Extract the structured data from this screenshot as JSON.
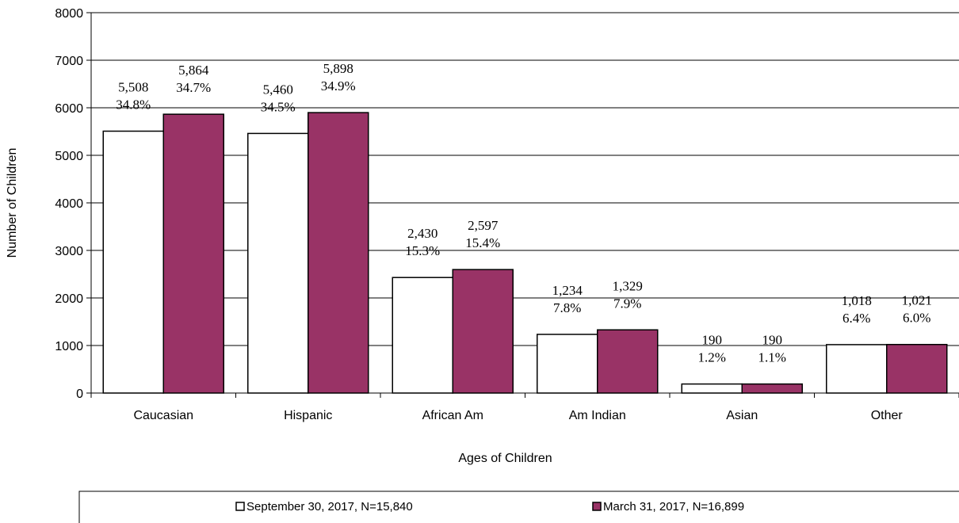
{
  "chart_data": {
    "type": "bar",
    "title": "",
    "xlabel": "Ages of Children",
    "ylabel": "Number of Children",
    "ylim": [
      0,
      8000
    ],
    "yticks": [
      0,
      1000,
      2000,
      3000,
      4000,
      5000,
      6000,
      7000,
      8000
    ],
    "grid": true,
    "legend_position": "bottom",
    "categories": [
      "Caucasian",
      "Hispanic",
      "African Am",
      "Am Indian",
      "Asian",
      "Other"
    ],
    "series": [
      {
        "name": "September 30, 2017, N=15,840",
        "color": "#ffffff",
        "values": [
          5508,
          5460,
          2430,
          1234,
          190,
          1018
        ],
        "labels": [
          "5,508",
          "5,460",
          "2,430",
          "1,234",
          "190",
          "1,018"
        ],
        "percents": [
          "34.8%",
          "34.5%",
          "15.3%",
          "7.8%",
          "1.2%",
          "6.4%"
        ]
      },
      {
        "name": "March 31, 2017, N=16,899",
        "color": "#993366",
        "values": [
          5864,
          5898,
          2597,
          1329,
          190,
          1021
        ],
        "labels": [
          "5,864",
          "5,898",
          "2,597",
          "1,329",
          "190",
          "1,021"
        ],
        "percents": [
          "34.7%",
          "34.9%",
          "15.4%",
          "7.9%",
          "1.1%",
          "6.0%"
        ]
      }
    ]
  }
}
